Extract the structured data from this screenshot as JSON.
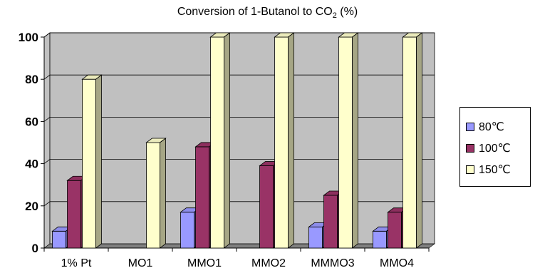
{
  "chart_data": {
    "type": "bar",
    "title_main": "Conversion of 1-Butanol to CO",
    "title_sub": "2",
    "title_tail": " (%)",
    "categories": [
      "1% Pt",
      "MO1",
      "MMO1",
      "MMO2",
      "MMMO3",
      "MMO4"
    ],
    "series": [
      {
        "name": "80℃",
        "color": "#9999ff",
        "values": [
          8,
          0,
          17,
          0,
          10,
          8
        ]
      },
      {
        "name": "100℃",
        "color": "#993366",
        "values": [
          32,
          0,
          48,
          39,
          25,
          17
        ]
      },
      {
        "name": "150℃",
        "color": "#ffffcc",
        "values": [
          80,
          50,
          100,
          100,
          100,
          100
        ]
      }
    ],
    "ylim": [
      0,
      100
    ],
    "yticks": [
      "0",
      "20",
      "40",
      "60",
      "80",
      "100"
    ],
    "grid": true,
    "legend_position": "right"
  }
}
